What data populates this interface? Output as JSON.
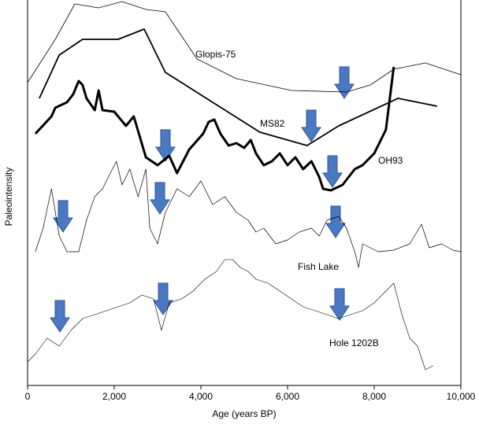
{
  "chart_data": {
    "type": "line",
    "xlabel": "Age (years BP)",
    "ylabel": "Paleointensity",
    "xlim": [
      0,
      10000
    ],
    "xticks": [
      0,
      {
        "value": 2000,
        "label": "2,000"
      },
      {
        "value": 4000,
        "label": "4,000"
      },
      {
        "value": 6000,
        "label": "6,000"
      },
      {
        "value": 8000,
        "label": "8,000"
      },
      {
        "value": 10000,
        "label": "10,000"
      }
    ],
    "ylim": [
      0,
      490
    ],
    "series": [
      {
        "name": "Glopis-75",
        "color": "#000000",
        "line_width": 0.8,
        "x": [
          0,
          640,
          1090,
          1640,
          2180,
          2730,
          3180,
          3910,
          4820,
          6090,
          7360,
          7910,
          8450,
          9180,
          10000
        ],
        "values": [
          385,
          440,
          485,
          480,
          488,
          478,
          475,
          415,
          390,
          375,
          373,
          382,
          402,
          410,
          395
        ]
      },
      {
        "name": "MS82",
        "color": "#000000",
        "line_width": 1.8,
        "x": [
          270,
          730,
          1270,
          2090,
          2690,
          3180,
          5360,
          6450,
          7180,
          8550,
          9450
        ],
        "values": [
          365,
          420,
          440,
          440,
          453,
          398,
          322,
          305,
          330,
          365,
          355
        ]
      },
      {
        "name": "OH93",
        "color": "#000000",
        "line_width": 3,
        "x": [
          180,
          550,
          640,
          910,
          1050,
          1180,
          1270,
          1360,
          1550,
          1640,
          1730,
          2000,
          2270,
          2450,
          2730,
          3000,
          3270,
          3450,
          3730,
          4050,
          4180,
          4310,
          4450,
          4640,
          4820,
          5000,
          5150,
          5270,
          5450,
          5640,
          5820,
          6000,
          6180,
          6360,
          6550,
          6730,
          6820,
          7000,
          7270,
          7550,
          7730,
          8000,
          8270,
          8450
        ],
        "values": [
          320,
          342,
          353,
          360,
          370,
          387,
          382,
          365,
          350,
          375,
          350,
          348,
          330,
          342,
          290,
          280,
          292,
          270,
          300,
          320,
          335,
          338,
          320,
          305,
          308,
          302,
          312,
          295,
          280,
          285,
          295,
          280,
          290,
          275,
          285,
          265,
          250,
          248,
          255,
          275,
          280,
          295,
          325,
          405
        ]
      },
      {
        "name": "Fish Lake",
        "color": "#000000",
        "line_width": 0.7,
        "x": [
          180,
          360,
          550,
          730,
          910,
          1180,
          1360,
          1550,
          1730,
          1910,
          2050,
          2180,
          2360,
          2550,
          2730,
          2820,
          3000,
          3180,
          3450,
          3730,
          4000,
          4270,
          4550,
          4820,
          5090,
          5270,
          5450,
          5730,
          6000,
          6270,
          6550,
          6730,
          6910,
          7180,
          7360,
          7550,
          7640,
          7730,
          8090,
          8450,
          8820,
          9090,
          9270,
          9550,
          9820,
          10000
        ],
        "values": [
          170,
          200,
          250,
          190,
          170,
          170,
          210,
          240,
          250,
          270,
          285,
          255,
          275,
          240,
          275,
          200,
          180,
          220,
          250,
          240,
          260,
          230,
          240,
          220,
          210,
          195,
          200,
          180,
          185,
          195,
          200,
          190,
          210,
          215,
          200,
          170,
          150,
          180,
          170,
          172,
          180,
          205,
          175,
          180,
          172,
          170
        ]
      },
      {
        "name": "Hole 1202B",
        "color": "#000000",
        "line_width": 0.6,
        "x": [
          0,
          180,
          450,
          730,
          1000,
          1270,
          1550,
          1820,
          2090,
          2360,
          2640,
          2910,
          3090,
          3270,
          3550,
          3820,
          4090,
          4360,
          4550,
          4730,
          4910,
          5090,
          5270,
          5550,
          5820,
          6090,
          6360,
          6640,
          6910,
          7180,
          7450,
          7730,
          8000,
          8270,
          8450,
          8640,
          8820,
          9000,
          9180,
          9360
        ],
        "values": [
          30,
          40,
          60,
          50,
          70,
          85,
          90,
          95,
          100,
          105,
          115,
          110,
          70,
          105,
          110,
          120,
          135,
          145,
          160,
          160,
          150,
          145,
          135,
          130,
          120,
          110,
          100,
          95,
          90,
          85,
          90,
          95,
          105,
          120,
          130,
          90,
          60,
          50,
          20,
          25
        ]
      }
    ]
  }
}
